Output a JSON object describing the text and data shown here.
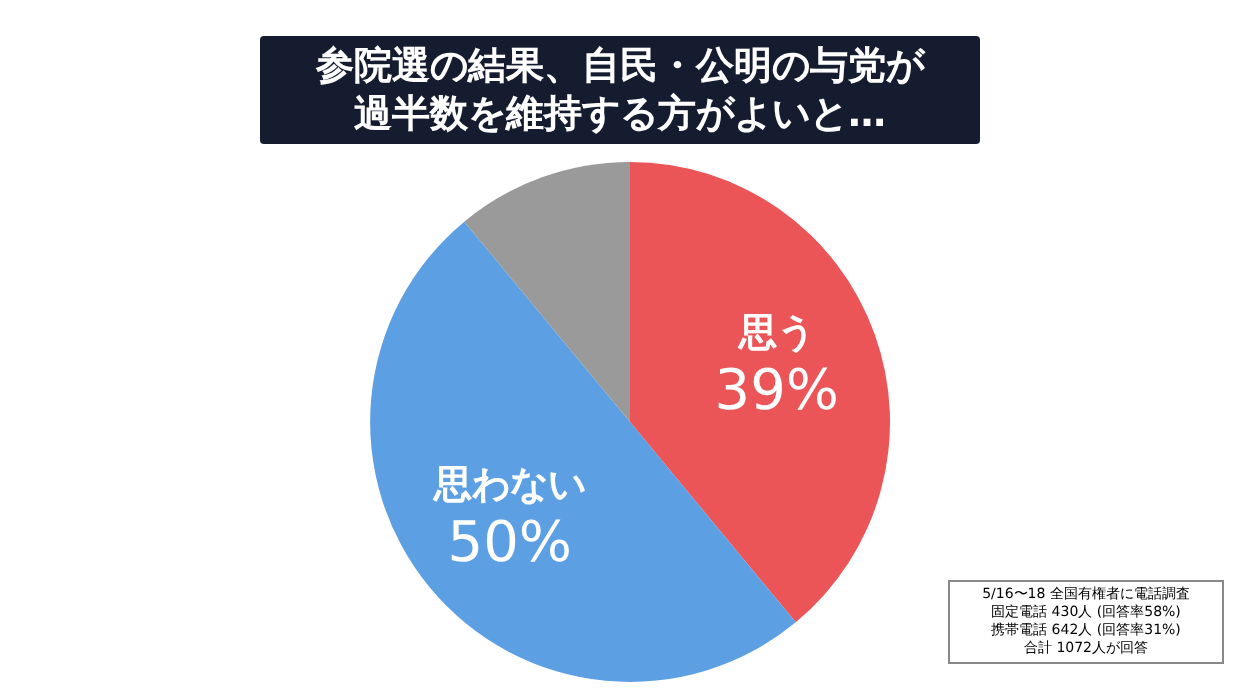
{
  "chart_data": {
    "type": "pie",
    "title": "参院選の結果、自民・公明の与党が過半数を維持する方がよいと…",
    "categories": [
      "思う",
      "思わない",
      null
    ],
    "values": [
      39,
      50,
      11
    ],
    "colors": [
      "#ec5558",
      "#5c9fe3",
      "#9a9a9a"
    ],
    "value_labels": [
      "39%",
      "50%",
      null
    ],
    "annotations": [
      "5/16〜18 全国有権者に電話調査",
      "固定電話 430人 (回答率58%)",
      "携帯電話 642人 (回答率31%)",
      "合計 1072人が回答"
    ],
    "legend": false
  }
}
